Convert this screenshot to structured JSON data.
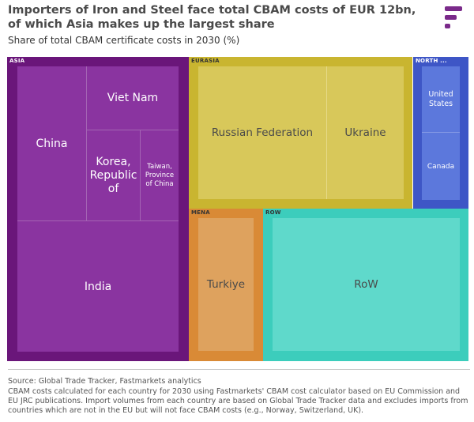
{
  "header": {
    "title": "Importers of Iron and Steel face total CBAM costs of EUR 12bn, of which Asia makes up the largest share",
    "subtitle": "Share of total CBAM certificate costs in 2030 (%)",
    "logo": "fastmarkets-logo"
  },
  "chart_data": {
    "type": "treemap",
    "title": "Importers of Iron and Steel face total CBAM costs of EUR 12bn, of which Asia makes up the largest share",
    "subtitle": "Share of total CBAM certificate costs in 2030 (%)",
    "regions": [
      {
        "name": "ASIA",
        "color": "#7b1f84",
        "countries": [
          "China",
          "Viet Nam",
          "Korea, Republic of",
          "Taiwan, Province of China",
          "India"
        ]
      },
      {
        "name": "EURASIA",
        "color": "#c9b530",
        "countries": [
          "Russian Federation",
          "Ukraine"
        ]
      },
      {
        "name": "NORTH ...",
        "color": "#3e56c6",
        "countries": [
          "United States",
          "Canada"
        ]
      },
      {
        "name": "MENA",
        "color": "#d98a36",
        "countries": [
          "Turkiye"
        ]
      },
      {
        "name": "ROW",
        "color": "#3ccdbc",
        "countries": [
          "RoW"
        ]
      }
    ]
  },
  "labels": {
    "asia": "ASIA",
    "eurasia": "EURASIA",
    "north": "NORTH ...",
    "mena": "MENA",
    "row": "ROW",
    "china": "China",
    "vietnam": "Viet Nam",
    "korea1": "Korea,",
    "korea2": "Republic",
    "korea3": "of",
    "taiwan1": "Taiwan,",
    "taiwan2": "Province",
    "taiwan3": "of China",
    "india": "India",
    "russia": "Russian Federation",
    "ukraine": "Ukraine",
    "us1": "United",
    "us2": "States",
    "canada": "Canada",
    "turkiye": "Turkiye",
    "rowc": "RoW"
  },
  "colors": {
    "asia_border": "#6a167a",
    "asia_fill": "#8a34a0",
    "eurasia_border": "#c9b530",
    "eurasia_fill": "#d8c85a",
    "north_border": "#3e56c6",
    "north_fill": "#5c78dc",
    "mena_border": "#d98a36",
    "mena_fill": "#dea25e",
    "row_border": "#3ccdbc",
    "row_fill": "#5fd9cb"
  },
  "footer": {
    "source": "Source: Global Trade Tracker, Fastmarkets analytics",
    "note": "CBAM costs calculated for each country for 2030 using Fastmarkets' CBAM cost calculator based on EU Commission and EU JRC publications. Import volumes from each country are based on Global Trade Tracker data and excludes imports from countries which are not in the EU but will not face CBAM costs (e.g., Norway, Switzerland, UK)."
  }
}
